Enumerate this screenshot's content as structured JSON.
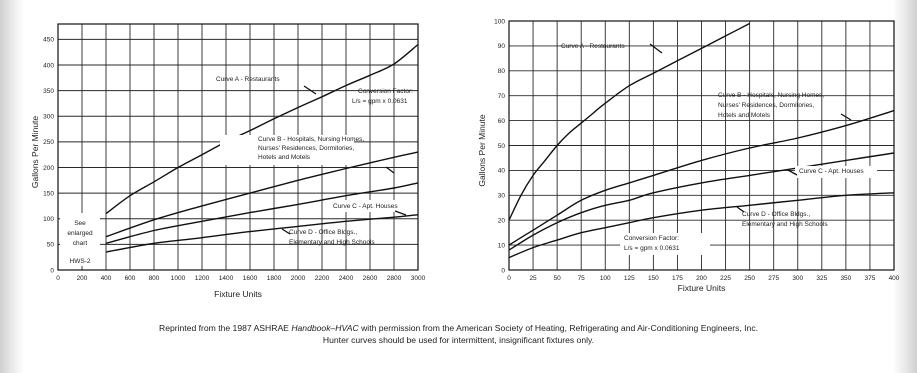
{
  "chart_data": [
    {
      "type": "line",
      "xlabel": "Fixture Units",
      "ylabel": "Gallons Per Minute",
      "xlim": [
        0,
        3000
      ],
      "ylim": [
        0,
        480
      ],
      "xticks": [
        0,
        200,
        400,
        600,
        800,
        1000,
        1200,
        1400,
        1600,
        1800,
        2000,
        2200,
        2400,
        2600,
        2800,
        3000
      ],
      "yticks": [
        0,
        50,
        100,
        150,
        200,
        250,
        300,
        350,
        400,
        450
      ],
      "grid": true,
      "series": [
        {
          "name": "Curve A - Restaurants",
          "x": [
            400,
            600,
            800,
            1000,
            1200,
            1400,
            1600,
            1800,
            2000,
            2200,
            2400,
            2600,
            2800,
            3000
          ],
          "y": [
            110,
            145,
            172,
            200,
            225,
            250,
            272,
            295,
            317,
            338,
            360,
            380,
            402,
            440
          ]
        },
        {
          "name": "Curve B - Hospitals, Nursing Homes, Nurses' Residences, Dormitories, Hotels and Motels",
          "x": [
            400,
            800,
            1200,
            1600,
            2000,
            2400,
            2800,
            3000
          ],
          "y": [
            65,
            98,
            125,
            150,
            175,
            198,
            220,
            230
          ]
        },
        {
          "name": "Curve C - Apt. Houses",
          "x": [
            400,
            800,
            1200,
            1600,
            2000,
            2400,
            2800,
            3000
          ],
          "y": [
            52,
            77,
            95,
            112,
            128,
            145,
            160,
            170
          ]
        },
        {
          "name": "Curve D - Office Bldgs., Elementary and High Schools",
          "x": [
            400,
            800,
            1200,
            1600,
            2000,
            2400,
            2800,
            3000
          ],
          "y": [
            35,
            52,
            63,
            75,
            85,
            95,
            103,
            108
          ]
        }
      ],
      "annotations": {
        "curve_a": "Curve A - Restaurants",
        "conversion_1": "Conversion Factor:",
        "conversion_2": "L/s = gpm x 0.0631",
        "curve_b_1": "Curve B - Hospitals, Nursing Homes,",
        "curve_b_2": "Nurses' Residences, Dormitories,",
        "curve_b_3": "Hotels and Motels",
        "curve_c": "Curve C - Apt. Houses",
        "curve_d_1": "Curve D - Office Bldgs.,",
        "curve_d_2": "Elementary and High Schools",
        "see_1": "See",
        "see_2": "enlarged",
        "see_3": "chart",
        "see_4": "HWS-2"
      }
    },
    {
      "type": "line",
      "xlabel": "Fixture Units",
      "ylabel": "Gallons Per Minute",
      "xlim": [
        0,
        400
      ],
      "ylim": [
        0,
        100
      ],
      "xticks": [
        0,
        25,
        50,
        75,
        100,
        125,
        150,
        175,
        200,
        225,
        250,
        275,
        300,
        325,
        350,
        375,
        400
      ],
      "yticks": [
        0,
        10,
        20,
        30,
        40,
        50,
        60,
        70,
        80,
        90,
        100
      ],
      "grid": true,
      "series": [
        {
          "name": "Curve A - Restaurants",
          "x": [
            0,
            12.5,
            25,
            37.5,
            50,
            62.5,
            75,
            87.5,
            100,
            125,
            150,
            175,
            200,
            225,
            250
          ],
          "y": [
            20,
            30,
            38,
            44,
            50,
            55,
            59,
            63,
            67,
            74,
            79,
            84,
            89,
            94,
            99
          ]
        },
        {
          "name": "Curve B - Hospitals, Nursing Homes, Nurses' Residences, Dormitories, Hotels and Motels",
          "x": [
            0,
            25,
            50,
            75,
            100,
            125,
            150,
            200,
            250,
            300,
            350,
            400
          ],
          "y": [
            10,
            16,
            22,
            28,
            32,
            35,
            38,
            44,
            49,
            53,
            58,
            64
          ]
        },
        {
          "name": "Curve C - Apt. Houses",
          "x": [
            0,
            25,
            50,
            75,
            100,
            125,
            150,
            200,
            250,
            300,
            350,
            400
          ],
          "y": [
            8,
            14,
            19,
            23,
            26,
            28,
            31,
            35,
            38,
            41,
            44,
            47
          ]
        },
        {
          "name": "Curve D - Office Bldgs., Elementary and High Schools",
          "x": [
            0,
            25,
            50,
            75,
            100,
            125,
            150,
            200,
            250,
            300,
            350,
            400
          ],
          "y": [
            5,
            9,
            12,
            15,
            17,
            19,
            21,
            24,
            26,
            28,
            30,
            31
          ]
        }
      ],
      "annotations": {
        "curve_a": "Curve A - Restaurants",
        "curve_b_1": "Curve B - Hospitals, Nursing Homes,",
        "curve_b_2": "Nurses' Residences, Dormitories,",
        "curve_b_3": "Hotels and Motels",
        "curve_c": "Curve C - Apt. Houses",
        "curve_d_1": "Curve D - Office Bldgs.,",
        "curve_d_2": "Elementary and High Schools",
        "conversion_1": "Conversion Factor:",
        "conversion_2": "L/s = gpm x 0.0631"
      }
    }
  ],
  "caption": {
    "line1_before": "Reprinted from the 1987 ASHRAE ",
    "line1_italic": "Handbook–HVAC",
    "line1_after": " with permission from the American Society of Heating, Refrigerating and Air-Conditioning Engineers, Inc.",
    "line2": "Hunter curves should be used for intermittent, insignificant fixtures only."
  }
}
